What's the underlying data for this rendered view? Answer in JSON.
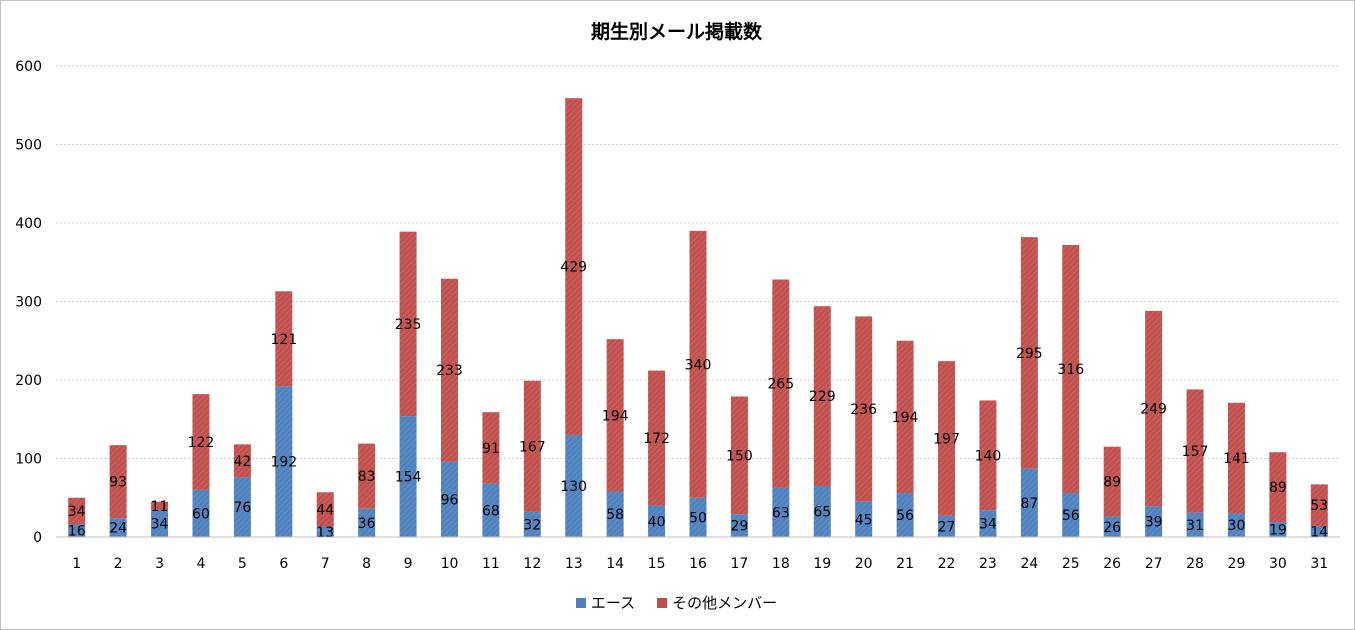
{
  "chart_data": {
    "type": "bar",
    "stacked": true,
    "title": "期生別メール掲載数",
    "xlabel": "",
    "ylabel": "",
    "ylim": [
      0,
      600
    ],
    "yticks": [
      0,
      100,
      200,
      300,
      400,
      500,
      600
    ],
    "grid": true,
    "legend_position": "bottom",
    "categories": [
      "1",
      "2",
      "3",
      "4",
      "5",
      "6",
      "7",
      "8",
      "9",
      "10",
      "11",
      "12",
      "13",
      "14",
      "15",
      "16",
      "17",
      "18",
      "19",
      "20",
      "21",
      "22",
      "23",
      "24",
      "25",
      "26",
      "27",
      "28",
      "29",
      "30",
      "31"
    ],
    "series": [
      {
        "name": "エース",
        "color": "#4f81bd",
        "values": [
          16,
          24,
          34,
          60,
          76,
          192,
          13,
          36,
          154,
          96,
          68,
          32,
          130,
          58,
          40,
          50,
          29,
          63,
          65,
          45,
          56,
          27,
          34,
          87,
          56,
          26,
          39,
          31,
          30,
          19,
          14
        ]
      },
      {
        "name": "その他メンバー",
        "color": "#c0504d",
        "values": [
          34,
          93,
          11,
          122,
          42,
          121,
          44,
          83,
          235,
          233,
          91,
          167,
          429,
          194,
          172,
          340,
          150,
          265,
          229,
          236,
          194,
          197,
          140,
          295,
          316,
          89,
          249,
          157,
          141,
          89,
          53
        ]
      }
    ]
  }
}
